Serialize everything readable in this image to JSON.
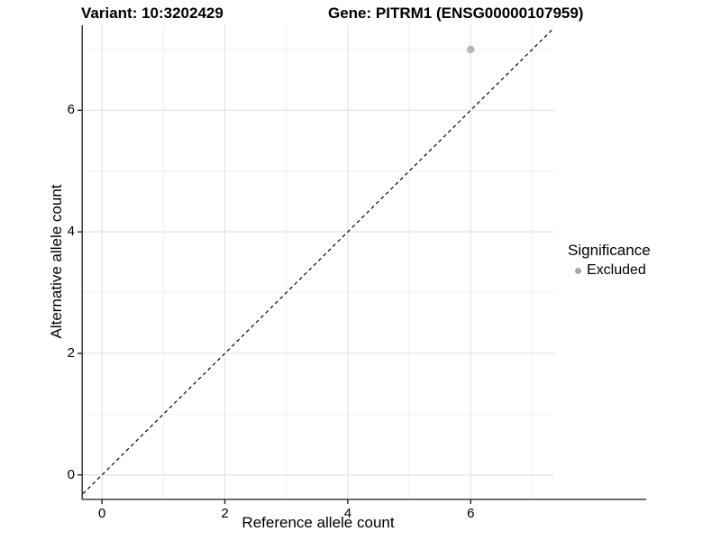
{
  "chart_data": {
    "type": "scatter",
    "title_left": "Variant: 10:3202429",
    "title_right": "Gene: PITRM1 (ENSG00000107959)",
    "xlabel": "Reference allele count",
    "ylabel": "Alternative allele count",
    "x_ticks": [
      0,
      2,
      4,
      6
    ],
    "y_ticks": [
      0,
      2,
      4,
      6
    ],
    "x_minor_gridlines": [
      1,
      3,
      5,
      7
    ],
    "y_minor_gridlines": [
      1,
      3,
      5,
      7
    ],
    "xlim": [
      -0.31,
      7.36
    ],
    "ylim": [
      -0.39,
      7.4
    ],
    "grid": true,
    "points": [
      {
        "x": 6,
        "y": 7,
        "significance": "Excluded"
      }
    ],
    "identity_line": {
      "equation": "y = x",
      "style": "dashed"
    },
    "legend": {
      "title": "Significance",
      "position": "right",
      "entries": [
        {
          "label": "Excluded",
          "marker": "circle",
          "color": "#a9a9a9"
        }
      ]
    },
    "colors": {
      "point": "#b7b7b7",
      "legend_marker": "#a9a9a9",
      "grid_major": "#e3e3e3",
      "grid_minor": "#f0f0f0",
      "axis_line": "#404040",
      "tick_mark": "#222222",
      "dashed_line": "#000000",
      "background": "#ffffff"
    }
  }
}
